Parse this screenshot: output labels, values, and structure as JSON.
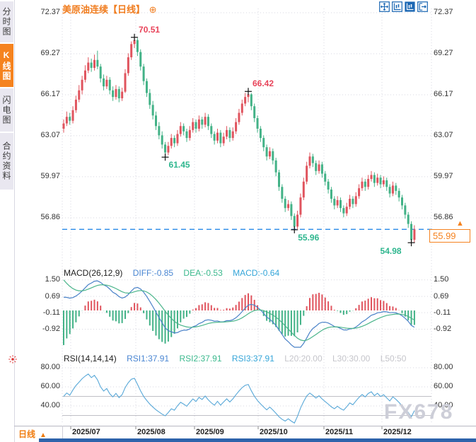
{
  "sidebar": {
    "tabs": [
      {
        "label": "分时图",
        "active": false
      },
      {
        "label": "K线图",
        "active": true
      },
      {
        "label": "闪电图",
        "active": false
      },
      {
        "label": "合约资料",
        "active": false
      }
    ]
  },
  "header": {
    "title": "美原油连续",
    "period_tag": "【日线】",
    "expand_icon": "⊕"
  },
  "toolbar": {
    "icons": [
      "move-tool",
      "axis-zoom",
      "chart-style",
      "exit-chart"
    ]
  },
  "price_axis": {
    "labels": [
      "72.37",
      "69.27",
      "66.17",
      "63.07",
      "59.97",
      "56.86"
    ]
  },
  "macd_axis": {
    "labels": [
      "1.50",
      "0.69",
      "-0.11",
      "-0.92"
    ]
  },
  "rsi_axis": {
    "labels": [
      "80.00",
      "60.00",
      "40.00"
    ]
  },
  "x_axis": {
    "labels": [
      "2025/07",
      "2025/08",
      "2025/09",
      "2025/10",
      "2025/11",
      "2025/12"
    ]
  },
  "macd_header": {
    "name": "MACD(26,12,9)",
    "diff": "DIFF:-0.85",
    "dea": "DEA:-0.53",
    "macd": "MACD:-0.64"
  },
  "rsi_header": {
    "name": "RSI(14,14,14)",
    "rsi1": "RSI1:37.91",
    "rsi2": "RSI2:37.91",
    "rsi3": "RSI3:37.91",
    "l20": "L20:20.00",
    "l30": "L30:30.00",
    "l50": "L50:50"
  },
  "price_box": {
    "value": "55.99",
    "arrow": "▲"
  },
  "bottom_bar": {
    "period_label": "日线",
    "period_arrow": "▲"
  },
  "watermark": "FX678",
  "chart_data": {
    "type": "candlestick",
    "title": "美原油连续 日线",
    "price_ticks": [
      72.37,
      69.27,
      66.17,
      63.07,
      59.97,
      56.86
    ],
    "macd_ticks": [
      1.5,
      0.69,
      -0.11,
      -0.92
    ],
    "rsi_ticks": [
      80,
      60,
      40
    ],
    "rsi_ref_lines": [
      50,
      30
    ],
    "x_labels": [
      "2025/07",
      "2025/08",
      "2025/09",
      "2025/10",
      "2025/11",
      "2025/12"
    ],
    "last_price": 55.99,
    "macd_last": {
      "diff": -0.85,
      "dea": -0.53,
      "macd": -0.64
    },
    "rsi_last": 37.91,
    "annotations": [
      {
        "text": "70.51",
        "candle": 23,
        "price": 70.51,
        "kind": "high",
        "side": "right-above",
        "color": "#e8445a"
      },
      {
        "text": "66.42",
        "candle": 60,
        "price": 66.42,
        "kind": "high",
        "side": "right-above",
        "color": "#e8445a"
      },
      {
        "text": "61.45",
        "candle": 33,
        "price": 61.45,
        "kind": "low",
        "side": "right-below",
        "color": "#2eb68e"
      },
      {
        "text": "55.96",
        "candle": 75,
        "price": 55.96,
        "kind": "low",
        "side": "right-below",
        "color": "#2eb68e"
      },
      {
        "text": "54.98",
        "candle": 113,
        "price": 54.98,
        "kind": "low",
        "side": "left-below",
        "color": "#2eb68e"
      }
    ],
    "colors": {
      "up": "#e0545e",
      "down": "#43b287",
      "diff_line": "#4a82c8",
      "dea_line": "#4bb58b",
      "rsi_line": "#58a8d8",
      "grid": "#d7d7e0",
      "ref_line": "#bfbfc6",
      "price_line": "#2a8be8",
      "accent": "#f5821f",
      "cross": "#111111"
    },
    "candles": [
      [
        63.6,
        64.3,
        63.3,
        64.0
      ],
      [
        64.0,
        64.9,
        63.8,
        64.5
      ],
      [
        64.5,
        64.8,
        63.9,
        64.2
      ],
      [
        64.2,
        65.3,
        64.0,
        65.0
      ],
      [
        65.0,
        66.1,
        64.8,
        65.8
      ],
      [
        65.8,
        66.9,
        65.6,
        66.5
      ],
      [
        66.5,
        67.6,
        66.2,
        67.3
      ],
      [
        67.3,
        68.4,
        67.1,
        68.0
      ],
      [
        68.0,
        69.0,
        67.8,
        68.6
      ],
      [
        68.6,
        68.9,
        67.9,
        68.2
      ],
      [
        68.2,
        69.2,
        68.0,
        68.8
      ],
      [
        68.8,
        69.5,
        68.1,
        68.3
      ],
      [
        68.3,
        68.5,
        67.1,
        67.4
      ],
      [
        67.4,
        67.7,
        66.5,
        66.8
      ],
      [
        66.8,
        67.6,
        66.6,
        67.3
      ],
      [
        67.3,
        67.5,
        66.2,
        66.5
      ],
      [
        66.5,
        66.8,
        65.7,
        66.0
      ],
      [
        66.0,
        66.9,
        65.8,
        66.6
      ],
      [
        66.6,
        66.8,
        65.6,
        65.9
      ],
      [
        65.9,
        66.7,
        65.7,
        66.4
      ],
      [
        66.4,
        68.1,
        66.3,
        67.8
      ],
      [
        67.8,
        69.3,
        67.6,
        69.0
      ],
      [
        69.0,
        70.2,
        68.8,
        70.0
      ],
      [
        70.0,
        70.51,
        69.7,
        70.3
      ],
      [
        70.3,
        70.45,
        69.1,
        69.4
      ],
      [
        69.4,
        69.6,
        68.0,
        68.3
      ],
      [
        68.3,
        68.5,
        66.9,
        67.2
      ],
      [
        67.2,
        67.4,
        66.0,
        66.3
      ],
      [
        66.3,
        66.6,
        65.1,
        65.4
      ],
      [
        65.4,
        65.7,
        64.3,
        64.6
      ],
      [
        64.6,
        64.9,
        63.5,
        63.8
      ],
      [
        63.8,
        64.1,
        62.8,
        63.1
      ],
      [
        63.1,
        63.4,
        62.1,
        62.4
      ],
      [
        62.4,
        62.6,
        61.45,
        61.8
      ],
      [
        61.8,
        62.6,
        61.6,
        62.3
      ],
      [
        62.3,
        63.2,
        62.1,
        62.9
      ],
      [
        62.9,
        63.1,
        62.2,
        62.5
      ],
      [
        62.5,
        63.5,
        62.3,
        63.2
      ],
      [
        63.2,
        64.1,
        63.0,
        63.8
      ],
      [
        63.8,
        64.0,
        63.1,
        63.4
      ],
      [
        63.4,
        63.6,
        62.6,
        62.9
      ],
      [
        62.9,
        63.8,
        62.7,
        63.5
      ],
      [
        63.5,
        64.4,
        63.3,
        64.1
      ],
      [
        64.1,
        64.3,
        63.3,
        63.6
      ],
      [
        63.6,
        64.6,
        63.4,
        64.3
      ],
      [
        64.3,
        64.5,
        63.6,
        63.9
      ],
      [
        63.9,
        64.8,
        63.7,
        64.5
      ],
      [
        64.5,
        64.7,
        63.5,
        63.8
      ],
      [
        63.8,
        64.0,
        62.9,
        63.2
      ],
      [
        63.2,
        63.4,
        62.4,
        62.7
      ],
      [
        62.7,
        63.6,
        62.5,
        63.3
      ],
      [
        63.3,
        63.5,
        62.2,
        62.5
      ],
      [
        62.5,
        63.3,
        62.3,
        63.0
      ],
      [
        63.0,
        63.8,
        62.8,
        63.5
      ],
      [
        63.5,
        63.7,
        62.6,
        62.9
      ],
      [
        62.9,
        63.7,
        62.7,
        63.4
      ],
      [
        63.4,
        64.4,
        63.2,
        64.1
      ],
      [
        64.1,
        65.1,
        63.9,
        64.8
      ],
      [
        64.8,
        65.8,
        64.6,
        65.5
      ],
      [
        65.5,
        66.3,
        65.3,
        66.0
      ],
      [
        66.0,
        66.42,
        65.6,
        66.2
      ],
      [
        66.2,
        66.3,
        65.0,
        65.3
      ],
      [
        65.3,
        65.5,
        64.1,
        64.4
      ],
      [
        64.4,
        64.6,
        63.3,
        63.6
      ],
      [
        63.6,
        63.8,
        62.6,
        62.9
      ],
      [
        62.9,
        63.1,
        61.9,
        62.2
      ],
      [
        62.2,
        62.4,
        61.2,
        61.5
      ],
      [
        61.5,
        62.2,
        61.3,
        61.9
      ],
      [
        61.9,
        62.1,
        60.9,
        61.2
      ],
      [
        61.2,
        61.4,
        60.0,
        60.3
      ],
      [
        60.3,
        60.5,
        58.9,
        59.2
      ],
      [
        59.2,
        59.4,
        58.0,
        58.3
      ],
      [
        58.3,
        58.5,
        57.3,
        57.6
      ],
      [
        57.6,
        58.2,
        57.4,
        57.9
      ],
      [
        57.9,
        58.1,
        56.7,
        57.0
      ],
      [
        57.0,
        57.2,
        55.96,
        56.2
      ],
      [
        56.2,
        57.4,
        56.0,
        57.1
      ],
      [
        57.1,
        58.7,
        56.9,
        58.4
      ],
      [
        58.4,
        59.9,
        58.2,
        59.6
      ],
      [
        59.6,
        61.1,
        59.4,
        60.8
      ],
      [
        60.8,
        61.8,
        60.6,
        61.5
      ],
      [
        61.5,
        61.7,
        60.7,
        61.0
      ],
      [
        61.0,
        61.2,
        60.1,
        60.4
      ],
      [
        60.4,
        61.2,
        60.2,
        60.9
      ],
      [
        60.9,
        61.1,
        59.9,
        60.2
      ],
      [
        60.2,
        60.4,
        59.3,
        59.6
      ],
      [
        59.6,
        59.8,
        58.7,
        59.0
      ],
      [
        59.0,
        59.2,
        58.0,
        58.3
      ],
      [
        58.3,
        58.5,
        57.5,
        57.8
      ],
      [
        57.8,
        58.5,
        57.6,
        58.2
      ],
      [
        58.2,
        58.4,
        57.3,
        57.6
      ],
      [
        57.6,
        57.8,
        56.9,
        57.2
      ],
      [
        57.2,
        58.0,
        57.0,
        57.7
      ],
      [
        57.7,
        58.6,
        57.5,
        58.3
      ],
      [
        58.3,
        58.5,
        57.6,
        57.9
      ],
      [
        57.9,
        58.8,
        57.7,
        58.5
      ],
      [
        58.5,
        59.4,
        58.3,
        59.1
      ],
      [
        59.1,
        59.9,
        58.9,
        59.6
      ],
      [
        59.6,
        59.8,
        58.9,
        59.2
      ],
      [
        59.2,
        60.1,
        59.0,
        59.8
      ],
      [
        59.8,
        60.4,
        59.6,
        60.1
      ],
      [
        60.1,
        60.3,
        59.2,
        59.5
      ],
      [
        59.5,
        60.2,
        59.3,
        59.9
      ],
      [
        59.9,
        60.1,
        59.1,
        59.4
      ],
      [
        59.4,
        60.0,
        59.2,
        59.7
      ],
      [
        59.7,
        59.9,
        58.9,
        59.2
      ],
      [
        59.2,
        59.4,
        58.4,
        58.7
      ],
      [
        58.7,
        59.6,
        58.5,
        59.3
      ],
      [
        59.3,
        59.5,
        58.6,
        58.9
      ],
      [
        58.9,
        59.1,
        58.1,
        58.4
      ],
      [
        58.4,
        58.6,
        57.5,
        57.8
      ],
      [
        57.8,
        58.0,
        56.8,
        57.1
      ],
      [
        57.1,
        57.3,
        56.1,
        56.4
      ],
      [
        56.4,
        56.6,
        54.98,
        55.2
      ],
      [
        55.2,
        56.3,
        55.0,
        55.99
      ]
    ]
  }
}
